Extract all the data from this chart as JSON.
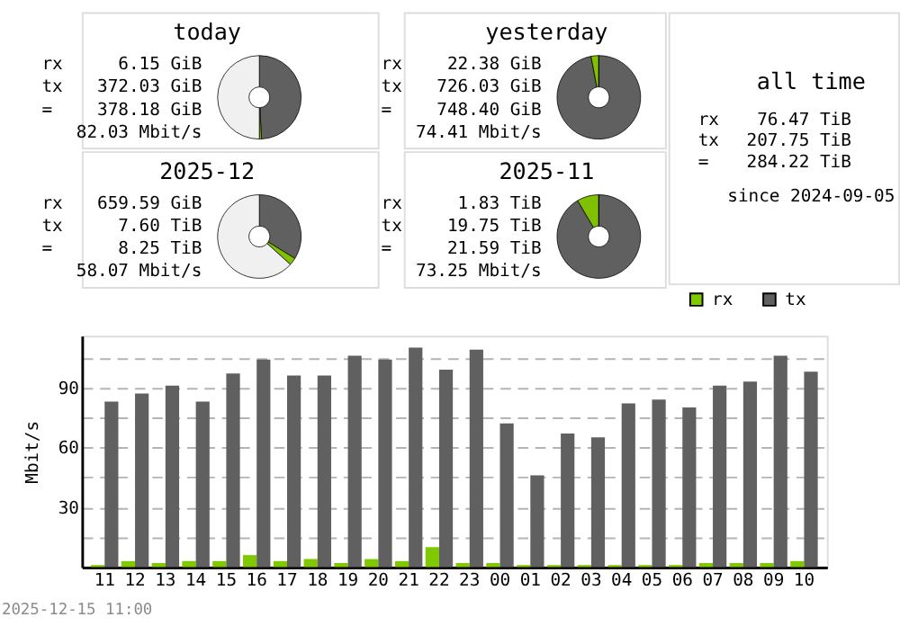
{
  "chart_data": [
    {
      "type": "donut",
      "title": "today",
      "categories": [
        null,
        null,
        null
      ],
      "values": [
        49.2,
        0.8,
        50
      ],
      "colors": [
        "#606060",
        "#80c000",
        "#f0f0f0"
      ],
      "annotations": [
        "rx 6.15 GiB",
        "tx 372.03 GiB",
        "= 378.18 GiB",
        "82.03 Mbit/s"
      ]
    },
    {
      "type": "donut",
      "title": "yesterday",
      "categories": [
        null,
        null,
        null
      ],
      "values": [
        97.0,
        3.0,
        0
      ],
      "colors": [
        "#606060",
        "#80c000",
        "#f0f0f0"
      ],
      "annotations": [
        "rx 22.38 GiB",
        "tx 726.03 GiB",
        "= 748.40 GiB",
        "74.41 Mbit/s"
      ]
    },
    {
      "type": "other",
      "title": "all time",
      "annotations": [
        "rx 76.47 TiB",
        "tx 207.75 TiB",
        "= 284.22 TiB",
        "since 2024-09-05"
      ]
    },
    {
      "type": "donut",
      "title": "2025-12",
      "categories": [
        null,
        null,
        null
      ],
      "values": [
        33.8,
        2.9,
        63.3
      ],
      "colors": [
        "#606060",
        "#80c000",
        "#f0f0f0"
      ],
      "annotations": [
        "rx 659.59 GiB",
        "tx 7.60 TiB",
        "= 8.25 TiB",
        "58.07 Mbit/s"
      ]
    },
    {
      "type": "donut",
      "title": "2025-11",
      "categories": [
        null,
        null,
        null
      ],
      "values": [
        91.5,
        8.5,
        0
      ],
      "colors": [
        "#606060",
        "#80c000",
        "#f0f0f0"
      ],
      "annotations": [
        "rx 1.83 TiB",
        "tx 19.75 TiB",
        "= 21.59 TiB",
        "73.25 Mbit/s"
      ]
    },
    {
      "type": "bar",
      "ylabel": "Mbit/s",
      "categories": [
        "11",
        "12",
        "13",
        "14",
        "15",
        "16",
        "17",
        "18",
        "19",
        "20",
        "21",
        "22",
        "23",
        "00",
        "01",
        "02",
        "03",
        "04",
        "05",
        "06",
        "07",
        "08",
        "09",
        "10"
      ],
      "series": [
        {
          "name": "rx",
          "color": "#80c800",
          "values": [
            1,
            3,
            2,
            3,
            3,
            6,
            3,
            4,
            2,
            4,
            3,
            10,
            2,
            2,
            1,
            1,
            1,
            1,
            1,
            1,
            2,
            2,
            2,
            3
          ]
        },
        {
          "name": "tx",
          "color": "#606060",
          "values": [
            83,
            87,
            91,
            83,
            97,
            104,
            96,
            96,
            106,
            104,
            110,
            99,
            109,
            72,
            46,
            67,
            65,
            82,
            84,
            80,
            91,
            93,
            106,
            98
          ]
        }
      ],
      "ylim": [
        0,
        116
      ],
      "yticks": [
        {
          "value": 15,
          "label": null
        },
        30,
        {
          "value": 45,
          "label": null
        },
        60,
        {
          "value": 75,
          "label": null
        },
        90,
        {
          "value": 105,
          "label": null
        }
      ],
      "grid": "y",
      "legend": "top right",
      "annotations": [
        "2025-12-15 11:00"
      ]
    }
  ]
}
